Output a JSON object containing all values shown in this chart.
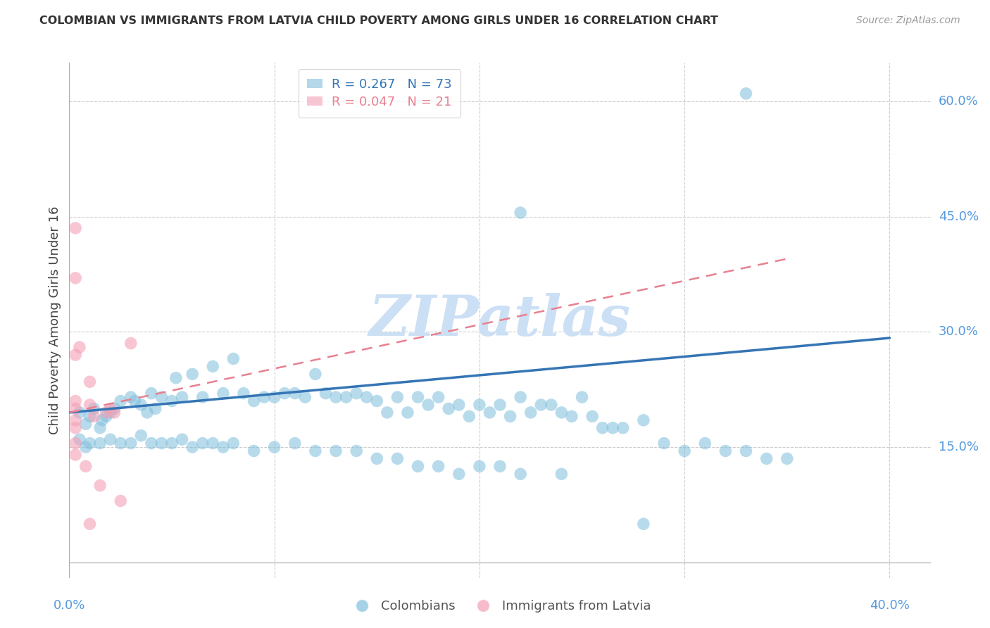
{
  "title": "COLOMBIAN VS IMMIGRANTS FROM LATVIA CHILD POVERTY AMONG GIRLS UNDER 16 CORRELATION CHART",
  "source": "Source: ZipAtlas.com",
  "ylabel": "Child Poverty Among Girls Under 16",
  "xlim": [
    0.0,
    0.42
  ],
  "ylim": [
    -0.02,
    0.65
  ],
  "background_color": "#ffffff",
  "grid_color": "#cccccc",
  "blue_color": "#7fbfdd",
  "pink_color": "#f4a0b5",
  "blue_line_color": "#3575b5",
  "pink_line_color": "#e88090",
  "tick_label_color": "#5599dd",
  "R_blue": 0.267,
  "N_blue": 73,
  "R_pink": 0.047,
  "N_pink": 21,
  "blue_scatter_x": [
    0.005,
    0.008,
    0.01,
    0.012,
    0.015,
    0.016,
    0.018,
    0.02,
    0.022,
    0.025,
    0.03,
    0.032,
    0.035,
    0.038,
    0.04,
    0.042,
    0.045,
    0.05,
    0.052,
    0.055,
    0.06,
    0.065,
    0.07,
    0.075,
    0.08,
    0.085,
    0.09,
    0.095,
    0.1,
    0.105,
    0.11,
    0.115,
    0.12,
    0.125,
    0.13,
    0.135,
    0.14,
    0.145,
    0.15,
    0.155,
    0.16,
    0.165,
    0.17,
    0.175,
    0.18,
    0.185,
    0.19,
    0.195,
    0.2,
    0.205,
    0.21,
    0.215,
    0.22,
    0.225,
    0.23,
    0.235,
    0.24,
    0.245,
    0.25,
    0.255,
    0.26,
    0.265,
    0.27,
    0.28,
    0.29,
    0.3,
    0.31,
    0.32,
    0.33,
    0.34,
    0.35,
    0.22,
    0.33
  ],
  "blue_scatter_y": [
    0.195,
    0.18,
    0.19,
    0.2,
    0.175,
    0.185,
    0.19,
    0.195,
    0.2,
    0.21,
    0.215,
    0.21,
    0.205,
    0.195,
    0.22,
    0.2,
    0.215,
    0.21,
    0.24,
    0.215,
    0.245,
    0.215,
    0.255,
    0.22,
    0.265,
    0.22,
    0.21,
    0.215,
    0.215,
    0.22,
    0.22,
    0.215,
    0.245,
    0.22,
    0.215,
    0.215,
    0.22,
    0.215,
    0.21,
    0.195,
    0.215,
    0.195,
    0.215,
    0.205,
    0.215,
    0.2,
    0.205,
    0.19,
    0.205,
    0.195,
    0.205,
    0.19,
    0.215,
    0.195,
    0.205,
    0.205,
    0.195,
    0.19,
    0.215,
    0.19,
    0.175,
    0.175,
    0.175,
    0.185,
    0.155,
    0.145,
    0.155,
    0.145,
    0.145,
    0.135,
    0.135,
    0.455,
    0.61
  ],
  "blue_scatter2_x": [
    0.005,
    0.008,
    0.01,
    0.015,
    0.02,
    0.025,
    0.03,
    0.035,
    0.04,
    0.045,
    0.05,
    0.055,
    0.06,
    0.065,
    0.07,
    0.075,
    0.08,
    0.09,
    0.1,
    0.11,
    0.12,
    0.13,
    0.14,
    0.15,
    0.16,
    0.17,
    0.18,
    0.19,
    0.2,
    0.21,
    0.22,
    0.24,
    0.28
  ],
  "blue_scatter2_y": [
    0.16,
    0.15,
    0.155,
    0.155,
    0.16,
    0.155,
    0.155,
    0.165,
    0.155,
    0.155,
    0.155,
    0.16,
    0.15,
    0.155,
    0.155,
    0.15,
    0.155,
    0.145,
    0.15,
    0.155,
    0.145,
    0.145,
    0.145,
    0.135,
    0.135,
    0.125,
    0.125,
    0.115,
    0.125,
    0.125,
    0.115,
    0.115,
    0.05
  ],
  "pink_scatter_x": [
    0.003,
    0.003,
    0.003,
    0.003,
    0.003,
    0.003,
    0.003,
    0.003,
    0.003,
    0.01,
    0.01,
    0.012,
    0.015,
    0.018,
    0.02,
    0.022,
    0.025,
    0.03,
    0.005,
    0.008,
    0.01
  ],
  "pink_scatter_y": [
    0.435,
    0.37,
    0.27,
    0.21,
    0.2,
    0.185,
    0.175,
    0.155,
    0.14,
    0.235,
    0.205,
    0.19,
    0.1,
    0.195,
    0.2,
    0.195,
    0.08,
    0.285,
    0.28,
    0.125,
    0.05
  ],
  "blue_line_x0": 0.0,
  "blue_line_x1": 0.4,
  "blue_line_y0": 0.195,
  "blue_line_y1": 0.292,
  "pink_line_x0": 0.0,
  "pink_line_x1": 0.35,
  "pink_line_y0": 0.195,
  "pink_line_y1": 0.395,
  "watermark": "ZIPatlas",
  "watermark_color": "#cce0f5"
}
